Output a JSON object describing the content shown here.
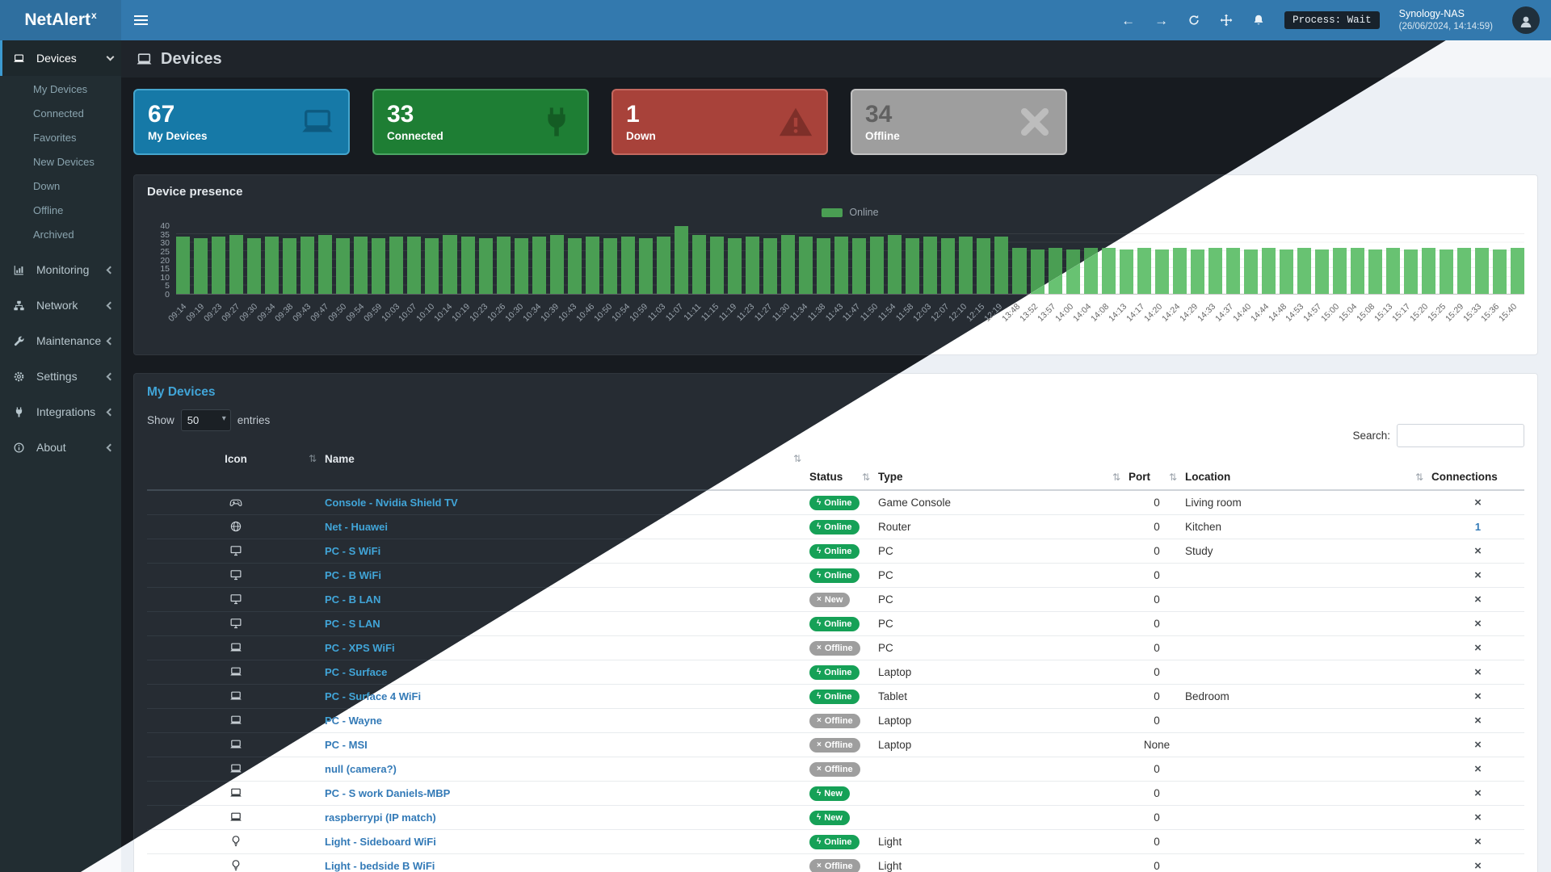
{
  "app": {
    "brand": "NetAlert",
    "brand_sup": "x"
  },
  "header": {
    "process_badge": "Process: Wait",
    "host": "Synology-NAS",
    "timestamp": "(26/06/2024, 14:14:59)"
  },
  "icons": {
    "back": "←",
    "forward": "→",
    "sort": "⇅",
    "plug": "ϟ",
    "x": "×"
  },
  "colors": {
    "header": "#3379ae",
    "badge_online": "#16a157",
    "badge_offline": "#9e9e9e",
    "bar_dark_theme": "#4a9e53",
    "bar_light_theme": "#68c272",
    "link_dark_theme": "#41a5d8",
    "link_light_theme": "#337ab7"
  },
  "page": {
    "title": "Devices"
  },
  "sidebar": {
    "items": [
      {
        "label": "Devices",
        "icon": "laptop",
        "expanded": true,
        "active": true,
        "children": [
          "My Devices",
          "Connected",
          "Favorites",
          "New Devices",
          "Down",
          "Offline",
          "Archived"
        ]
      },
      {
        "label": "Monitoring",
        "icon": "chart"
      },
      {
        "label": "Network",
        "icon": "network"
      },
      {
        "label": "Maintenance",
        "icon": "wrench"
      },
      {
        "label": "Settings",
        "icon": "gear"
      },
      {
        "label": "Integrations",
        "icon": "plug"
      },
      {
        "label": "About",
        "icon": "info"
      }
    ]
  },
  "cards": [
    {
      "value": "67",
      "label": "My Devices",
      "color": "#1679a7",
      "border": "#45a5cd",
      "icon": "laptop",
      "icon_color": "#0d5a80",
      "value_color": "#ffffff"
    },
    {
      "value": "33",
      "label": "Connected",
      "color": "#1e7e34",
      "border": "#4ca564",
      "icon": "plug",
      "icon_color": "#145c24",
      "value_color": "#ffffff"
    },
    {
      "value": "1",
      "label": "Down",
      "color": "#a8423a",
      "border": "#c4685f",
      "icon": "warning",
      "icon_color": "#7e2f29",
      "value_color": "#ffffff"
    },
    {
      "value": "34",
      "label": "Offline",
      "color": "#9e9e9e",
      "border": "#c2c2c2",
      "icon": "xmark",
      "icon_color": "#bdbdbd",
      "value_color": "#616161"
    }
  ],
  "chart_data": {
    "type": "bar",
    "title": "Device presence",
    "legend": "Online",
    "ylim": [
      0,
      40
    ],
    "yticks": [
      0,
      5,
      10,
      15,
      20,
      25,
      30,
      35,
      40
    ],
    "grid": true,
    "x": [
      "09:14",
      "09:19",
      "09:23",
      "09:27",
      "09:30",
      "09:34",
      "09:38",
      "09:43",
      "09:47",
      "09:50",
      "09:54",
      "09:59",
      "10:03",
      "10:07",
      "10:10",
      "10:14",
      "10:19",
      "10:23",
      "10:26",
      "10:30",
      "10:34",
      "10:39",
      "10:43",
      "10:46",
      "10:50",
      "10:54",
      "10:59",
      "11:03",
      "11:07",
      "11:11",
      "11:15",
      "11:19",
      "11:23",
      "11:27",
      "11:30",
      "11:34",
      "11:38",
      "11:43",
      "11:47",
      "11:50",
      "11:54",
      "11:58",
      "12:03",
      "12:07",
      "12:10",
      "12:15",
      "12:19",
      "13:48",
      "13:52",
      "13:57",
      "14:00",
      "14:04",
      "14:08",
      "14:13",
      "14:17",
      "14:20",
      "14:24",
      "14:29",
      "14:33",
      "14:37",
      "14:40",
      "14:44",
      "14:48",
      "14:53",
      "14:57",
      "15:00",
      "15:04",
      "15:08",
      "15:13",
      "15:17",
      "15:20",
      "15:25",
      "15:29",
      "15:33",
      "15:36",
      "15:40"
    ],
    "values": [
      34,
      33,
      34,
      35,
      33,
      34,
      33,
      34,
      35,
      33,
      34,
      33,
      34,
      34,
      33,
      35,
      34,
      33,
      34,
      33,
      34,
      35,
      33,
      34,
      33,
      34,
      33,
      34,
      40,
      35,
      34,
      33,
      34,
      33,
      35,
      34,
      33,
      34,
      33,
      34,
      35,
      33,
      34,
      33,
      34,
      33,
      34,
      27,
      26,
      27,
      26,
      27,
      27,
      26,
      27,
      26,
      27,
      26,
      27,
      27,
      26,
      27,
      26,
      27,
      26,
      27,
      27,
      26,
      27,
      26,
      27,
      26,
      27,
      27,
      26,
      27
    ]
  },
  "table": {
    "panel_title": "My Devices",
    "show_label": "Show",
    "page_size": "50",
    "entries_label": "entries",
    "search_label": "Search:",
    "columns": [
      "Icon",
      "Name",
      "Status",
      "Type",
      "Port",
      "Location",
      "Connections"
    ],
    "rows": [
      {
        "icon": "gamepad",
        "name": "Console - Nvidia Shield TV",
        "status": "Online",
        "kind": "online",
        "type": "Game Console",
        "port": "0",
        "location": "Living room",
        "connections": ""
      },
      {
        "icon": "globe",
        "name": "Net - Huawei",
        "status": "Online",
        "kind": "online",
        "type": "Router",
        "port": "0",
        "location": "Kitchen",
        "connections": "1"
      },
      {
        "icon": "desktop",
        "name": "PC - S WiFi",
        "status": "Online",
        "kind": "online",
        "type": "PC",
        "port": "0",
        "location": "Study",
        "connections": ""
      },
      {
        "icon": "desktop",
        "name": "PC - B WiFi",
        "status": "Online",
        "kind": "online",
        "type": "PC",
        "port": "0",
        "location": "",
        "connections": ""
      },
      {
        "icon": "desktop",
        "name": "PC - B LAN",
        "status": "New",
        "kind": "new-offline",
        "type": "PC",
        "port": "0",
        "location": "",
        "connections": ""
      },
      {
        "icon": "desktop",
        "name": "PC - S LAN",
        "status": "Online",
        "kind": "online",
        "type": "PC",
        "port": "0",
        "location": "",
        "connections": ""
      },
      {
        "icon": "laptop",
        "name": "PC - XPS WiFi",
        "status": "Offline",
        "kind": "offline",
        "type": "PC",
        "port": "0",
        "location": "",
        "connections": ""
      },
      {
        "icon": "laptop",
        "name": "PC - Surface",
        "status": "Online",
        "kind": "online",
        "type": "Laptop",
        "port": "0",
        "location": "",
        "connections": ""
      },
      {
        "icon": "laptop",
        "name": "PC - Surface 4 WiFi",
        "status": "Online",
        "kind": "online",
        "type": "Tablet",
        "port": "0",
        "location": "Bedroom",
        "connections": ""
      },
      {
        "icon": "laptop",
        "name": "PC - Wayne",
        "status": "Offline",
        "kind": "offline",
        "type": "Laptop",
        "port": "0",
        "location": "",
        "connections": ""
      },
      {
        "icon": "laptop",
        "name": "PC - MSI",
        "status": "Offline",
        "kind": "offline",
        "type": "Laptop",
        "port": "None",
        "location": "",
        "connections": ""
      },
      {
        "icon": "laptop",
        "name": "null (camera?)",
        "status": "Offline",
        "kind": "offline",
        "type": "",
        "port": "0",
        "location": "",
        "connections": ""
      },
      {
        "icon": "laptop",
        "name": "PC - S work Daniels-MBP",
        "status": "New",
        "kind": "new-online",
        "type": "",
        "port": "0",
        "location": "",
        "connections": ""
      },
      {
        "icon": "laptop",
        "name": "raspberrypi (IP match)",
        "status": "New",
        "kind": "new-online",
        "type": "",
        "port": "0",
        "location": "",
        "connections": ""
      },
      {
        "icon": "bulb",
        "name": "Light - Sideboard WiFi",
        "status": "Online",
        "kind": "online",
        "type": "Light",
        "port": "0",
        "location": "",
        "connections": ""
      },
      {
        "icon": "bulb",
        "name": "Light - bedside B WiFi",
        "status": "Offline",
        "kind": "offline",
        "type": "Light",
        "port": "0",
        "location": "",
        "connections": ""
      }
    ]
  }
}
